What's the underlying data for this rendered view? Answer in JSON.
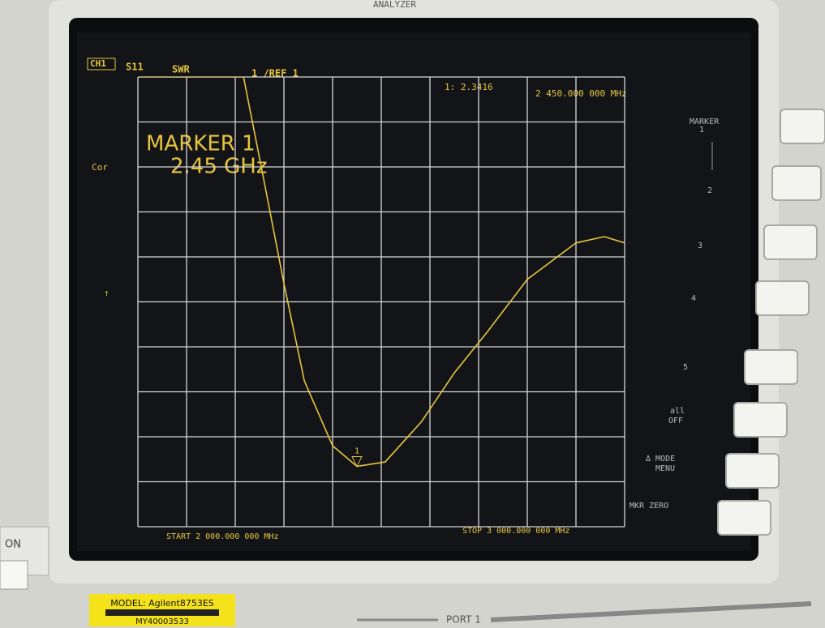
{
  "chart_data": {
    "type": "line",
    "header": {
      "channel": "CH1",
      "parameter": "S11",
      "format": "SWR",
      "scale": "1 /REF 1",
      "readout": "1: 2.3416",
      "marker_frequency": "2 450.000 000 MHz"
    },
    "marker_title": "MARKER 1",
    "marker_frequency_large": "2.45 GHz",
    "correction": "Cor",
    "start_label": "START 2 000.000 000 MHz",
    "stop_label": "STOP 3 000.000 000 MHz",
    "marker": {
      "x": 2450,
      "value": 2.3416,
      "label": "1"
    },
    "xlim": [
      2000,
      3000
    ],
    "ylim": [
      1,
      11
    ],
    "grid": true,
    "color": "#e8c53e",
    "x": [
      2000,
      2217,
      2258,
      2300,
      2342,
      2400,
      2450,
      2508,
      2583,
      2650,
      2717,
      2800,
      2900,
      2958,
      3000
    ],
    "values": [
      11,
      11,
      8.75,
      6.41,
      4.24,
      2.8,
      2.3416,
      2.44,
      3.34,
      4.42,
      5.32,
      6.5,
      7.31,
      7.45,
      7.31
    ]
  },
  "softkeys": {
    "title": "MARKER",
    "keys": [
      "1",
      "2",
      "3",
      "4",
      "5",
      "all",
      "OFF",
      "Δ MODE",
      "MENU",
      "MKR ZERO"
    ]
  },
  "bezel": {
    "brand": "ANALYZER",
    "model": "MODEL: Agilent8753ES",
    "serial": "MY40003533",
    "port": "PORT 1",
    "power": "ON"
  }
}
